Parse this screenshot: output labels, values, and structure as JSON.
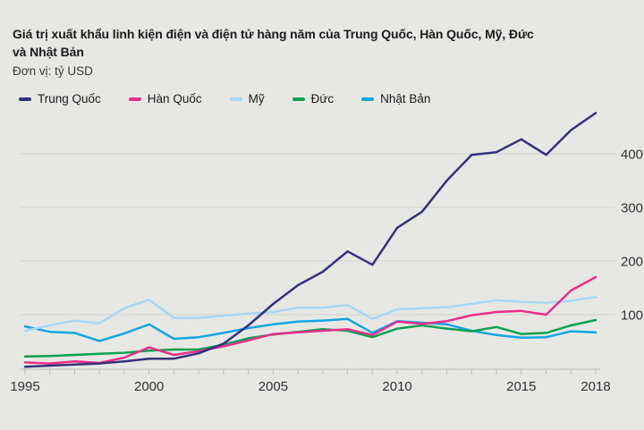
{
  "title_line1": "Giá trị xuất khẩu linh kiện điện và điện tử hàng năm của Trung Quốc, Hàn Quốc, Mỹ, Đức",
  "title_line2": "và Nhật Bản",
  "subtitle": "Đơn vị: tỷ USD",
  "colors": {
    "background": "#e7e7e4",
    "grid": "#d3d3d0",
    "axis": "#bcbcb9",
    "tick_label": "#333333",
    "title_text": "#1b1b1b"
  },
  "chart_data": {
    "type": "line",
    "title": "Giá trị xuất khẩu linh kiện điện và điện tử hàng năm của Trung Quốc, Hàn Quốc, Mỹ, Đức và Nhật Bản",
    "unit_label": "Đơn vị: tỷ USD",
    "xlabel": "",
    "ylabel": "tỷ USD",
    "x": [
      1995,
      1996,
      1997,
      1998,
      1999,
      2000,
      2001,
      2002,
      2003,
      2004,
      2005,
      2006,
      2007,
      2008,
      2009,
      2010,
      2011,
      2012,
      2013,
      2014,
      2015,
      2016,
      2017,
      2018
    ],
    "x_tick_labels": [
      "1995",
      "2000",
      "2005",
      "2010",
      "2015",
      "2018"
    ],
    "y_ticks": [
      100,
      200,
      300,
      400
    ],
    "ylim": [
      0,
      480
    ],
    "grid": "horizontal",
    "legend_position": "top-left",
    "series": [
      {
        "key": "trung-quoc",
        "name": "Trung Quốc",
        "color": "#34317d",
        "values": [
          3,
          5,
          7,
          9,
          13,
          18,
          18,
          28,
          46,
          80,
          120,
          155,
          180,
          218,
          193,
          262,
          292,
          350,
          398,
          403,
          427,
          398,
          444,
          476
        ]
      },
      {
        "key": "han-quoc",
        "name": "Hàn Quốc",
        "color": "#e8308a",
        "values": [
          11,
          9,
          13,
          10,
          20,
          39,
          25,
          32,
          41,
          52,
          64,
          67,
          70,
          73,
          62,
          87,
          83,
          88,
          99,
          105,
          107,
          100,
          145,
          170
        ]
      },
      {
        "key": "my",
        "name": "Mỹ",
        "color": "#a9d9f2",
        "values": [
          70,
          80,
          89,
          84,
          112,
          128,
          94,
          94,
          98,
          102,
          105,
          113,
          113,
          118,
          92,
          110,
          112,
          114,
          120,
          127,
          124,
          122,
          126,
          133
        ]
      },
      {
        "key": "duc",
        "name": "Đức",
        "color": "#0ea153",
        "values": [
          22,
          23,
          25,
          27,
          29,
          33,
          35,
          35,
          44,
          56,
          63,
          68,
          73,
          70,
          58,
          74,
          80,
          74,
          69,
          77,
          64,
          66,
          80,
          90
        ]
      },
      {
        "key": "nhat-ban",
        "name": "Nhật Bản",
        "color": "#14a5e0",
        "values": [
          78,
          68,
          66,
          51,
          65,
          82,
          55,
          58,
          66,
          75,
          82,
          87,
          89,
          92,
          66,
          88,
          85,
          82,
          70,
          62,
          57,
          58,
          69,
          67
        ]
      }
    ]
  }
}
